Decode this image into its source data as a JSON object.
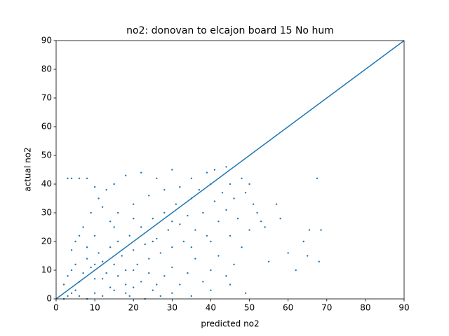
{
  "chart_data": {
    "type": "scatter",
    "title": "no2: donovan to elcajon board 15 No hum",
    "x_label": "predicted no2",
    "y_label": "actual no2",
    "xlim": [
      0,
      90
    ],
    "ylim": [
      0,
      90
    ],
    "xticks": [
      0,
      10,
      20,
      30,
      40,
      50,
      60,
      70,
      80,
      90
    ],
    "yticks": [
      0,
      10,
      20,
      30,
      40,
      50,
      60,
      70,
      80,
      90
    ],
    "grid": false,
    "series": [
      {
        "color": "#1f77b4",
        "x": [
          2,
          3,
          4,
          5,
          6,
          8,
          10,
          12,
          15,
          18,
          20,
          25,
          30,
          35,
          40,
          2,
          3,
          4,
          5,
          6,
          7,
          8,
          9,
          10,
          11,
          12,
          13,
          14,
          15,
          16,
          17,
          18,
          19,
          20,
          21,
          22,
          23,
          24,
          25,
          26,
          27,
          28,
          29,
          30,
          31,
          32,
          33,
          34,
          35,
          36,
          37,
          38,
          39,
          40,
          41,
          42,
          43,
          44,
          45,
          46,
          47,
          48,
          49,
          50,
          51,
          52,
          50,
          48,
          46,
          44,
          42,
          40,
          38,
          36,
          34,
          32,
          30,
          28,
          26,
          24,
          22,
          20,
          18,
          16,
          14,
          12,
          10,
          8,
          6,
          5,
          4,
          7,
          9,
          11,
          13,
          15,
          18,
          22,
          26,
          30,
          35,
          39,
          41,
          44,
          3,
          4,
          6,
          8,
          10,
          12,
          14,
          16,
          20,
          24,
          28,
          32,
          53,
          54,
          55,
          49,
          45,
          60,
          62,
          64,
          65,
          65.5,
          67.5,
          68,
          68.5,
          57,
          58,
          10,
          15,
          20,
          25,
          30,
          35,
          40,
          45,
          19,
          23,
          27
        ],
        "y": [
          0,
          1,
          2,
          3,
          1,
          0,
          2,
          1,
          3,
          2,
          4,
          3,
          2,
          1,
          3,
          5,
          8,
          10,
          12,
          6,
          9,
          14,
          11,
          7,
          16,
          13,
          9,
          18,
          12,
          20,
          15,
          10,
          22,
          17,
          12,
          25,
          19,
          14,
          28,
          21,
          16,
          30,
          24,
          18,
          33,
          26,
          20,
          29,
          35,
          24,
          38,
          30,
          22,
          40,
          34,
          27,
          37,
          31,
          40,
          35,
          28,
          42,
          37,
          40,
          33,
          30,
          24,
          18,
          12,
          8,
          15,
          10,
          6,
          14,
          9,
          5,
          11,
          8,
          5,
          9,
          6,
          10,
          5,
          8,
          4,
          7,
          12,
          18,
          22,
          20,
          17,
          25,
          30,
          35,
          38,
          40,
          43,
          44,
          42,
          45,
          42,
          44,
          45,
          46,
          42,
          42,
          42,
          42,
          39,
          32,
          27,
          30,
          33,
          36,
          38,
          39,
          27,
          25,
          13,
          2,
          5,
          16,
          10,
          20,
          15,
          24,
          42,
          13,
          24,
          33,
          28,
          22,
          25,
          28,
          20,
          27,
          18,
          20,
          22,
          1,
          0,
          1
        ]
      }
    ],
    "line": {
      "color": "#1f77b4",
      "x": [
        0,
        90
      ],
      "y": [
        0,
        90
      ]
    }
  }
}
